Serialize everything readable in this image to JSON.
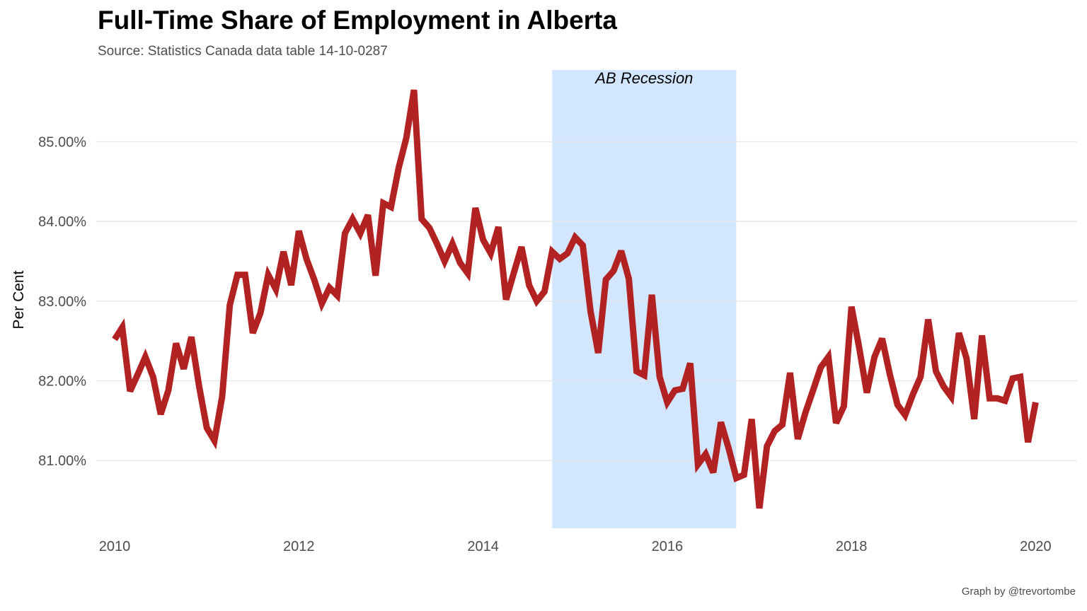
{
  "chart_data": {
    "type": "line",
    "title": "Full-Time Share of Employment in Alberta",
    "subtitle": "Source: Statistics Canada data table 14-10-0287",
    "caption": "Graph by @trevortombe",
    "xlabel": "",
    "ylabel": "Per Cent",
    "x_unit": "year (monthly observations)",
    "xlim": [
      2009.8,
      2020.45
    ],
    "ylim": [
      80.15,
      85.9
    ],
    "x_ticks": [
      2010,
      2012,
      2014,
      2016,
      2018,
      2020
    ],
    "x_tick_labels": [
      "2010",
      "2012",
      "2014",
      "2016",
      "2018",
      "2020"
    ],
    "y_ticks": [
      81,
      82,
      83,
      84,
      85
    ],
    "y_tick_labels": [
      "81.00%",
      "82.00%",
      "83.00%",
      "84.00%",
      "85.00%"
    ],
    "grid": "horizontal major gridlines",
    "legend": "none",
    "line_color": "#B22222",
    "shade_color": "#D3E6FF",
    "annotations": [
      {
        "type": "shaded_region",
        "label": "AB Recession",
        "x_start": 2014.75,
        "x_end": 2016.75
      }
    ],
    "series": [
      {
        "x": [
          2010.0,
          2010.083,
          2010.167,
          2010.25,
          2010.333,
          2010.417,
          2010.5,
          2010.583,
          2010.667,
          2010.75,
          2010.833,
          2010.917,
          2011.0,
          2011.083,
          2011.167,
          2011.25,
          2011.333,
          2011.417,
          2011.5,
          2011.583,
          2011.667,
          2011.75,
          2011.833,
          2011.917,
          2012.0,
          2012.083,
          2012.167,
          2012.25,
          2012.333,
          2012.417,
          2012.5,
          2012.583,
          2012.667,
          2012.75,
          2012.833,
          2012.917,
          2013.0,
          2013.083,
          2013.167,
          2013.25,
          2013.333,
          2013.417,
          2013.5,
          2013.583,
          2013.667,
          2013.75,
          2013.833,
          2013.917,
          2014.0,
          2014.083,
          2014.167,
          2014.25,
          2014.333,
          2014.417,
          2014.5,
          2014.583,
          2014.667,
          2014.75,
          2014.833,
          2014.917,
          2015.0,
          2015.083,
          2015.167,
          2015.25,
          2015.333,
          2015.417,
          2015.5,
          2015.583,
          2015.667,
          2015.75,
          2015.833,
          2015.917,
          2016.0,
          2016.083,
          2016.167,
          2016.25,
          2016.333,
          2016.417,
          2016.5,
          2016.583,
          2016.667,
          2016.75,
          2016.833,
          2016.917,
          2017.0,
          2017.083,
          2017.167,
          2017.25,
          2017.333,
          2017.417,
          2017.5,
          2017.583,
          2017.667,
          2017.75,
          2017.833,
          2017.917,
          2018.0,
          2018.083,
          2018.167,
          2018.25,
          2018.333,
          2018.417,
          2018.5,
          2018.583,
          2018.667,
          2018.75,
          2018.833,
          2018.917,
          2019.0,
          2019.083,
          2019.167,
          2019.25,
          2019.333,
          2019.417,
          2019.5,
          2019.583,
          2019.667,
          2019.75,
          2019.833,
          2019.917,
          2020.0
        ],
        "y": [
          82.52,
          82.67,
          81.87,
          82.08,
          82.3,
          82.05,
          81.58,
          81.88,
          82.47,
          82.15,
          82.55,
          81.93,
          81.41,
          81.25,
          81.8,
          82.95,
          83.33,
          83.33,
          82.6,
          82.85,
          83.33,
          83.15,
          83.62,
          83.2,
          83.88,
          83.53,
          83.27,
          82.97,
          83.17,
          83.07,
          83.85,
          84.03,
          83.85,
          84.08,
          83.32,
          84.23,
          84.18,
          84.67,
          85.05,
          85.65,
          84.03,
          83.92,
          83.72,
          83.5,
          83.72,
          83.48,
          83.35,
          84.17,
          83.77,
          83.6,
          83.93,
          83.02,
          83.35,
          83.68,
          83.2,
          83.0,
          83.12,
          83.62,
          83.53,
          83.6,
          83.8,
          83.7,
          82.87,
          82.35,
          83.27,
          83.38,
          83.63,
          83.28,
          82.12,
          82.07,
          83.08,
          82.05,
          81.73,
          81.88,
          81.9,
          82.22,
          80.95,
          81.08,
          80.85,
          81.48,
          81.15,
          80.78,
          80.82,
          81.52,
          80.4,
          81.18,
          81.37,
          81.45,
          82.1,
          81.27,
          81.6,
          81.88,
          82.17,
          82.3,
          81.47,
          81.68,
          82.93,
          82.42,
          81.85,
          82.3,
          82.53,
          82.08,
          81.7,
          81.57,
          81.83,
          82.05,
          82.77,
          82.12,
          81.93,
          81.8,
          82.6,
          82.28,
          81.52,
          82.57,
          81.78,
          81.78,
          81.75,
          82.03,
          82.05,
          81.23,
          81.73
        ]
      }
    ]
  }
}
